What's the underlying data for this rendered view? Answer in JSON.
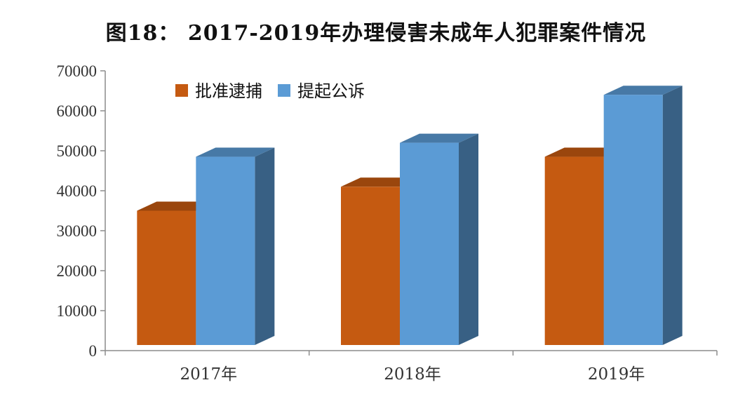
{
  "chart_data": {
    "type": "bar",
    "title": "图18： 2017-2019年办理侵害未成年人犯罪案件情况",
    "categories": [
      "2017年",
      "2018年",
      "2019年"
    ],
    "series": [
      {
        "name": "批准逮捕",
        "color": "#C55A11",
        "values": [
          35000,
          41000,
          48500
        ]
      },
      {
        "name": "提起公诉",
        "color": "#5B9BD5",
        "values": [
          48500,
          52000,
          64000
        ]
      }
    ],
    "ylim": [
      0,
      70000
    ],
    "yticks": [
      "0",
      "10000",
      "20000",
      "30000",
      "40000",
      "50000",
      "60000",
      "70000"
    ],
    "xlabel": "",
    "ylabel": "",
    "legend": "top-left",
    "grid": false,
    "style": "3d-column"
  }
}
